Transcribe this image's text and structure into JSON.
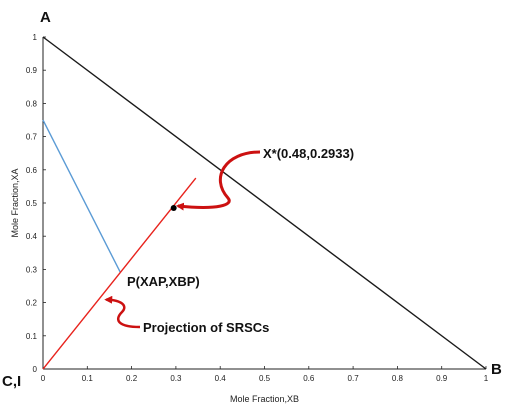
{
  "chart_data": {
    "type": "line",
    "xlabel": "Mole Fraction,XB",
    "ylabel": "Mole Fraction,XA",
    "xlim": [
      0,
      1
    ],
    "ylim": [
      0,
      1
    ],
    "x_ticks": [
      "0",
      "0.1",
      "0.2",
      "0.3",
      "0.4",
      "0.5",
      "0.6",
      "0.7",
      "0.8",
      "0.9",
      "1"
    ],
    "y_ticks": [
      "0",
      "0.1",
      "0.2",
      "0.3",
      "0.4",
      "0.5",
      "0.6",
      "0.7",
      "0.8",
      "0.9",
      "1"
    ],
    "grid": false,
    "vertices": {
      "A": "A",
      "B": "B",
      "CI": "C,I"
    },
    "series": [
      {
        "color": "#1a1a1a",
        "x": [
          0,
          1
        ],
        "y": [
          1,
          0
        ]
      },
      {
        "color": "#5b9bd5",
        "x": [
          0,
          0.175
        ],
        "y": [
          0.75,
          0.29
        ]
      },
      {
        "color": "#e8231d",
        "x": [
          0,
          0.345
        ],
        "y": [
          0,
          0.575
        ]
      }
    ],
    "points": [
      {
        "x": 0.295,
        "y": 0.485,
        "color": "#000000"
      }
    ],
    "annotations": [
      {
        "text": "X*(0.48,0.2933)",
        "arrow_to": [
          0.3,
          0.485
        ]
      },
      {
        "text": "P(XAP,XBP)"
      },
      {
        "text": "Projection of SRSCs",
        "arrow_to": [
          0.145,
          0.215
        ]
      }
    ],
    "arrow_color": "#cc1111"
  }
}
